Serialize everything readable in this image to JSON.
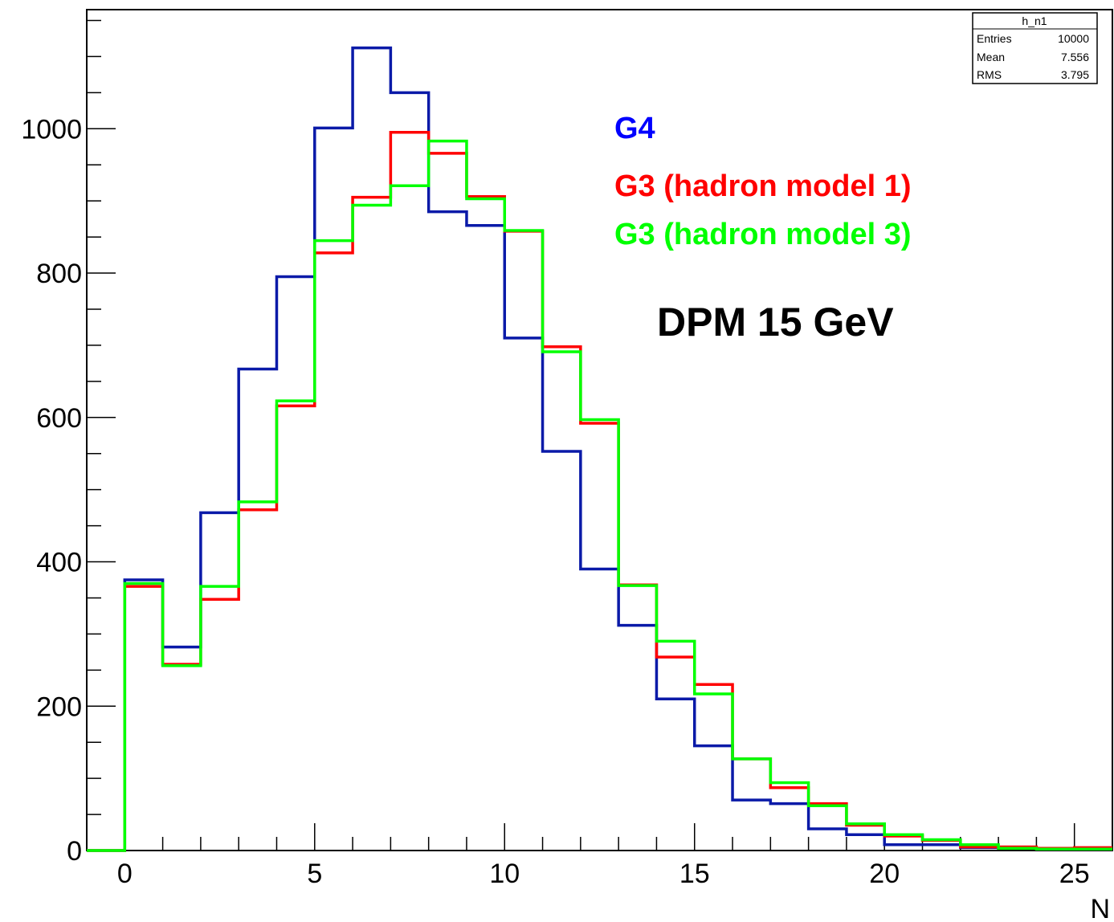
{
  "chart_data": {
    "type": "line",
    "title": "",
    "xlabel": "N",
    "ylabel": "",
    "xlim": [
      -1,
      26
    ],
    "ylim": [
      0,
      1165
    ],
    "x_ticks": [
      0,
      5,
      10,
      15,
      20,
      25
    ],
    "y_ticks": [
      0,
      200,
      400,
      600,
      800,
      1000
    ],
    "x_bin_edges": [
      -1,
      0,
      1,
      2,
      3,
      4,
      5,
      6,
      7,
      8,
      9,
      10,
      11,
      12,
      13,
      14,
      15,
      16,
      17,
      18,
      19,
      20,
      21,
      22,
      23,
      24,
      25,
      26
    ],
    "series": [
      {
        "name": "G4",
        "color": "#0a1aa8",
        "values": [
          0,
          375,
          282,
          468,
          667,
          795,
          1001,
          1112,
          1050,
          885,
          866,
          710,
          553,
          390,
          312,
          210,
          145,
          70,
          65,
          30,
          22,
          8,
          8,
          4,
          3,
          2,
          2
        ]
      },
      {
        "name": "G3 (hadron model 1)",
        "color": "#ff0000",
        "values": [
          0,
          366,
          258,
          348,
          472,
          616,
          828,
          905,
          995,
          966,
          906,
          858,
          698,
          592,
          368,
          268,
          230,
          127,
          87,
          65,
          35,
          20,
          14,
          5,
          5,
          3,
          4
        ]
      },
      {
        "name": "G3 (hadron model 3)",
        "color": "#00ff00",
        "values": [
          0,
          370,
          256,
          366,
          483,
          623,
          845,
          894,
          921,
          983,
          903,
          859,
          691,
          597,
          367,
          290,
          217,
          127,
          94,
          62,
          37,
          22,
          15,
          8,
          3,
          2,
          2
        ]
      }
    ],
    "annotation": "DPM 15 GeV",
    "stats": {
      "title": "h_n1",
      "rows": [
        {
          "label": "Entries",
          "value": "10000"
        },
        {
          "label": "Mean",
          "value": "7.556"
        },
        {
          "label": "RMS",
          "value": "3.795"
        }
      ]
    },
    "grid": false,
    "legend_position": "top-right"
  }
}
